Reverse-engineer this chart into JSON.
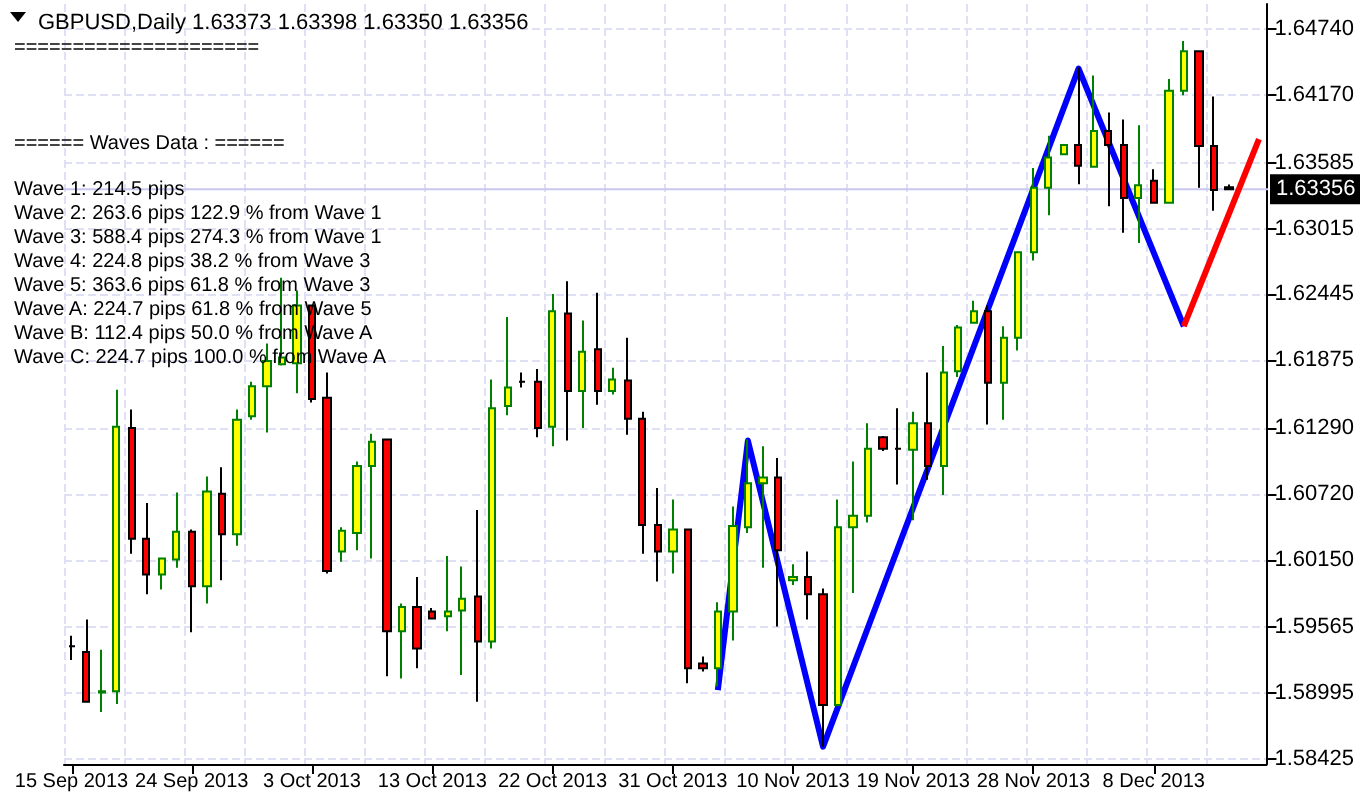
{
  "chart_data": {
    "type": "candlestick",
    "title": "GBPUSD,Daily 1.63373 1.63398 1.63350 1.63356",
    "categories": [
      "15 Sep 2013",
      null,
      null,
      null,
      null,
      null,
      null,
      null,
      "24 Sep 2013",
      null,
      null,
      null,
      null,
      null,
      null,
      null,
      "3 Oct 2013",
      null,
      null,
      null,
      null,
      null,
      null,
      null,
      "13 Oct 2013",
      null,
      null,
      null,
      null,
      null,
      null,
      null,
      "22 Oct 2013",
      null,
      null,
      null,
      null,
      null,
      null,
      null,
      "31 Oct 2013",
      null,
      null,
      null,
      null,
      null,
      null,
      null,
      "10 Nov 2013",
      null,
      null,
      null,
      null,
      null,
      null,
      null,
      "19 Nov 2013",
      null,
      null,
      null,
      null,
      null,
      null,
      null,
      "28 Nov 2013",
      null,
      null,
      null,
      null,
      null,
      null,
      null,
      "8 Dec 2013",
      null,
      null,
      null,
      null,
      null,
      null,
      null
    ],
    "ohlc": [
      [
        1.594,
        1.5949,
        1.5928,
        1.594
      ],
      [
        1.5935,
        1.5963,
        1.5892,
        1.5892
      ],
      [
        1.59,
        1.5937,
        1.5883,
        1.5901
      ],
      [
        1.5901,
        1.6162,
        1.589,
        1.613
      ],
      [
        1.6129,
        1.6145,
        1.602,
        1.6033
      ],
      [
        1.6033,
        1.6064,
        1.5985,
        1.6002
      ],
      [
        1.6002,
        1.6016,
        1.5989,
        1.6016
      ],
      [
        1.6015,
        1.6073,
        1.6008,
        1.6039
      ],
      [
        1.6039,
        1.6041,
        1.5952,
        1.5992
      ],
      [
        1.5992,
        1.6087,
        1.5977,
        1.6074
      ],
      [
        1.6072,
        1.6095,
        1.5997,
        1.6037
      ],
      [
        1.6037,
        1.6145,
        1.6027,
        1.6136
      ],
      [
        1.6139,
        1.6169,
        1.6136,
        1.6165
      ],
      [
        1.6165,
        1.6202,
        1.6125,
        1.6187
      ],
      [
        1.6184,
        1.6259,
        1.6183,
        1.619
      ],
      [
        1.6185,
        1.6248,
        1.6159,
        1.6235
      ],
      [
        1.6235,
        1.6235,
        1.6151,
        1.6154
      ],
      [
        1.6155,
        1.6177,
        1.6003,
        1.6005
      ],
      [
        1.6022,
        1.6043,
        1.6013,
        1.604
      ],
      [
        1.6038,
        1.61,
        1.6023,
        1.6096
      ],
      [
        1.6096,
        1.6124,
        1.6016,
        1.6117
      ],
      [
        1.6119,
        1.6119,
        1.5914,
        1.5953
      ],
      [
        1.5953,
        1.5977,
        1.5912,
        1.5974
      ],
      [
        1.5974,
        1.6,
        1.5921,
        1.5938
      ],
      [
        1.597,
        1.5973,
        1.5964,
        1.5964
      ],
      [
        1.5966,
        1.6018,
        1.5953,
        1.597
      ],
      [
        1.5971,
        1.6009,
        1.5915,
        1.5981
      ],
      [
        1.5983,
        1.6058,
        1.5892,
        1.5944
      ],
      [
        1.5944,
        1.6171,
        1.5938,
        1.6146
      ],
      [
        1.6148,
        1.6225,
        1.614,
        1.6164
      ],
      [
        1.6169,
        1.6177,
        1.6164,
        1.6169
      ],
      [
        1.6169,
        1.618,
        1.6121,
        1.6129
      ],
      [
        1.613,
        1.6245,
        1.6113,
        1.623
      ],
      [
        1.6228,
        1.6256,
        1.6118,
        1.6161
      ],
      [
        1.6161,
        1.6222,
        1.6129,
        1.6195
      ],
      [
        1.6197,
        1.6246,
        1.6149,
        1.6161
      ],
      [
        1.6161,
        1.6181,
        1.6158,
        1.6171
      ],
      [
        1.617,
        1.6207,
        1.6123,
        1.6137
      ],
      [
        1.6137,
        1.6143,
        1.602,
        1.6045
      ],
      [
        1.6045,
        1.6077,
        1.5996,
        1.6022
      ],
      [
        1.6022,
        1.6067,
        1.6003,
        1.6041
      ],
      [
        1.6041,
        1.6041,
        1.5908,
        1.5921
      ],
      [
        1.5925,
        1.5931,
        1.5918,
        1.5921
      ],
      [
        1.5921,
        1.5978,
        1.5905,
        1.597
      ],
      [
        1.597,
        1.6061,
        1.5945,
        1.6044
      ],
      [
        1.6043,
        1.6119,
        1.6038,
        1.6081
      ],
      [
        1.6081,
        1.6113,
        1.6008,
        1.6086
      ],
      [
        1.6086,
        1.6103,
        1.5957,
        1.6023
      ],
      [
        1.5997,
        1.6011,
        1.5993,
        1.6
      ],
      [
        1.6,
        1.6022,
        1.5963,
        1.5985
      ],
      [
        1.5985,
        1.599,
        1.5853,
        1.5889
      ],
      [
        1.5889,
        1.6067,
        1.5888,
        1.6043
      ],
      [
        1.6043,
        1.61,
        1.5986,
        1.6053
      ],
      [
        1.6053,
        1.6133,
        1.6047,
        1.6111
      ],
      [
        1.6121,
        1.6122,
        1.6109,
        1.6111
      ],
      [
        1.6111,
        1.6146,
        1.608,
        1.6111
      ],
      [
        1.611,
        1.6143,
        1.6049,
        1.6133
      ],
      [
        1.6133,
        1.6177,
        1.6084,
        1.6096
      ],
      [
        1.6096,
        1.62,
        1.6071,
        1.6177
      ],
      [
        1.6178,
        1.6218,
        1.6173,
        1.6216
      ],
      [
        1.622,
        1.6239,
        1.622,
        1.623
      ],
      [
        1.623,
        1.6235,
        1.6132,
        1.6168
      ],
      [
        1.6168,
        1.6217,
        1.6136,
        1.6207
      ],
      [
        1.6207,
        1.6281,
        1.6196,
        1.6281
      ],
      [
        1.6281,
        1.6354,
        1.6274,
        1.6337
      ],
      [
        1.6337,
        1.6382,
        1.6313,
        1.6363
      ],
      [
        1.6366,
        1.6374,
        1.6366,
        1.6374
      ],
      [
        1.6374,
        1.6441,
        1.634,
        1.6356
      ],
      [
        1.6355,
        1.6434,
        1.6355,
        1.6386
      ],
      [
        1.6386,
        1.6402,
        1.6321,
        1.6374
      ],
      [
        1.6374,
        1.6396,
        1.6298,
        1.6328
      ],
      [
        1.6328,
        1.6391,
        1.6289,
        1.6339
      ],
      [
        1.6343,
        1.6353,
        1.6324,
        1.6324
      ],
      [
        1.6324,
        1.6431,
        1.6324,
        1.6421
      ],
      [
        1.6421,
        1.6464,
        1.6417,
        1.6455
      ],
      [
        1.6455,
        1.6455,
        1.6337,
        1.6373
      ],
      [
        1.6373,
        1.6416,
        1.6317,
        1.6335
      ],
      [
        1.63373,
        1.63398,
        1.6335,
        1.63356
      ],
      null,
      null
    ],
    "colors": [
      "#000000",
      "#ff0000",
      "#ffff00",
      "#ffff00",
      "#ff0000",
      "#ff0000",
      "#ffff00",
      "#ffff00",
      "#ff0000",
      "#ffff00",
      "#ff0000",
      "#ffff00",
      "#ffff00",
      "#ffff00",
      "#ffff00",
      "#ffff00",
      "#ff0000",
      "#ff0000",
      "#ffff00",
      "#ffff00",
      "#ffff00",
      "#ff0000",
      "#ffff00",
      "#ff0000",
      "#ff0000",
      "#ffff00",
      "#ffff00",
      "#ff0000",
      "#ffff00",
      "#ffff00",
      "#000000",
      "#ff0000",
      "#ffff00",
      "#ff0000",
      "#ffff00",
      "#ff0000",
      "#ffff00",
      "#ff0000",
      "#ff0000",
      "#ff0000",
      "#ffff00",
      "#ff0000",
      "#ff0000",
      "#ffff00",
      "#ffff00",
      "#ffff00",
      "#ffff00",
      "#ff0000",
      "#ffff00",
      "#ff0000",
      "#ff0000",
      "#ffff00",
      "#ffff00",
      "#ffff00",
      "#ff0000",
      "#000000",
      "#ffff00",
      "#ff0000",
      "#ffff00",
      "#ffff00",
      "#ffff00",
      "#ff0000",
      "#ffff00",
      "#ffff00",
      "#ffff00",
      "#ffff00",
      "#ffff00",
      "#ff0000",
      "#ffff00",
      "#ff0000",
      "#ff0000",
      "#ffff00",
      "#ff0000",
      "#ffff00",
      "#ffff00",
      "#ff0000",
      "#ff0000",
      "#000000",
      null,
      null
    ],
    "series": [
      {
        "type": "line",
        "color": "#0000ff",
        "values": [
          null,
          null,
          null,
          null,
          null,
          null,
          null,
          null,
          null,
          null,
          null,
          null,
          null,
          null,
          null,
          null,
          null,
          null,
          null,
          null,
          null,
          null,
          null,
          null,
          null,
          null,
          null,
          null,
          null,
          null,
          null,
          null,
          null,
          null,
          null,
          null,
          null,
          null,
          null,
          null,
          null,
          null,
          null,
          1.5902,
          null,
          1.6118,
          null,
          null,
          null,
          null,
          1.5853,
          null,
          null,
          null,
          null,
          null,
          null,
          null,
          null,
          null,
          null,
          null,
          null,
          null,
          null,
          null,
          null,
          1.644,
          null,
          null,
          null,
          null,
          null,
          null,
          1.6217,
          null,
          null,
          null,
          null,
          null
        ]
      },
      {
        "type": "line",
        "color": "#ff0000",
        "values": [
          null,
          null,
          null,
          null,
          null,
          null,
          null,
          null,
          null,
          null,
          null,
          null,
          null,
          null,
          null,
          null,
          null,
          null,
          null,
          null,
          null,
          null,
          null,
          null,
          null,
          null,
          null,
          null,
          null,
          null,
          null,
          null,
          null,
          null,
          null,
          null,
          null,
          null,
          null,
          null,
          null,
          null,
          null,
          null,
          null,
          null,
          null,
          null,
          null,
          null,
          null,
          null,
          null,
          null,
          null,
          null,
          null,
          null,
          null,
          null,
          null,
          null,
          null,
          null,
          null,
          null,
          null,
          null,
          null,
          null,
          null,
          null,
          null,
          null,
          1.6217,
          null,
          null,
          null,
          null,
          1.6379
        ]
      }
    ],
    "marker": "none",
    "ylim": [
      1.5838,
      1.6496
    ],
    "yticks": [
      {
        "value": 1.58425,
        "label": "1.58425"
      },
      {
        "value": 1.58995,
        "label": "1.58995"
      },
      {
        "value": 1.59565,
        "label": "1.59565"
      },
      {
        "value": 1.6015,
        "label": "1.60150"
      },
      {
        "value": 1.6072,
        "label": "1.60720"
      },
      {
        "value": 1.6129,
        "label": "1.61290"
      },
      {
        "value": 1.61875,
        "label": "1.61875"
      },
      {
        "value": 1.62445,
        "label": "1.62445"
      },
      {
        "value": 1.63015,
        "label": "1.63015"
      },
      {
        "value": 1.63585,
        "label": "1.63585"
      },
      {
        "value": 1.6417,
        "label": "1.64170"
      },
      {
        "value": 1.6474,
        "label": "1.64740"
      }
    ],
    "grid": true,
    "ref_lines": [
      {
        "axis": "y",
        "value": 1.63356,
        "label": "1.63356",
        "color": "#c8c8f0"
      }
    ],
    "annotations": [
      "=====================",
      "====== Waves Data : ======",
      "Wave 1: 214.5 pips",
      "Wave 2: 263.6 pips 122.9 % from Wave 1",
      "Wave 3: 588.4 pips 274.3 % from Wave 1",
      "Wave 4: 224.8 pips 38.2 % from Wave 3",
      "Wave 5: 363.6 pips 61.8 % from Wave 3",
      "Wave A: 224.7 pips 61.8 % from Wave 5",
      "Wave B: 112.4 pips 50.0 % from Wave A",
      "Wave C: 224.7 pips 100.0 % from Wave A"
    ]
  }
}
